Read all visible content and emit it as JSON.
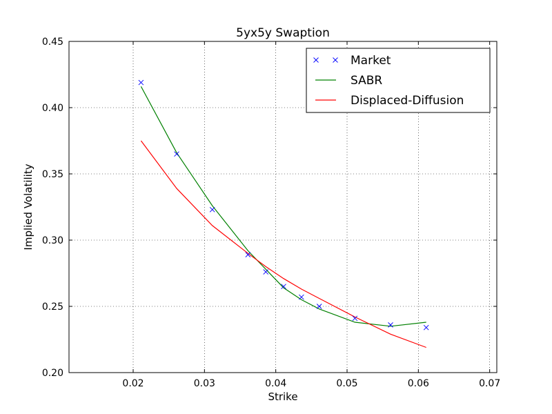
{
  "chart_data": {
    "type": "line",
    "title": "5yx5y Swaption",
    "xlabel": "Strike",
    "ylabel": "Implied Volatility",
    "xlim": [
      0.011,
      0.071
    ],
    "ylim": [
      0.2,
      0.45
    ],
    "grid": true,
    "legend_position": "top-right",
    "xticks": [
      0.02,
      0.03,
      0.04,
      0.05,
      0.06,
      0.07
    ],
    "xtick_labels": [
      "0.02",
      "0.03",
      "0.04",
      "0.05",
      "0.06",
      "0.07"
    ],
    "yticks": [
      0.2,
      0.25,
      0.3,
      0.35,
      0.4,
      0.45
    ],
    "ytick_labels": [
      "0.20",
      "0.25",
      "0.30",
      "0.35",
      "0.40",
      "0.45"
    ],
    "series": [
      {
        "name": "Market",
        "style": "markers",
        "marker": "x",
        "color": "#0000ff",
        "x": [
          0.0211,
          0.0261,
          0.0311,
          0.0361,
          0.0386,
          0.0411,
          0.0436,
          0.0461,
          0.0511,
          0.0561,
          0.0611
        ],
        "y": [
          0.419,
          0.365,
          0.323,
          0.289,
          0.276,
          0.265,
          0.257,
          0.25,
          0.241,
          0.236,
          0.234
        ]
      },
      {
        "name": "SABR",
        "style": "line",
        "color": "#008000",
        "x": [
          0.0211,
          0.0261,
          0.0311,
          0.0361,
          0.0386,
          0.0411,
          0.0436,
          0.0461,
          0.0511,
          0.0561,
          0.0611
        ],
        "y": [
          0.416,
          0.366,
          0.326,
          0.292,
          0.278,
          0.264,
          0.255,
          0.248,
          0.238,
          0.235,
          0.238
        ]
      },
      {
        "name": "Displaced-Diffusion",
        "style": "line",
        "color": "#ff0000",
        "x": [
          0.0211,
          0.0261,
          0.0311,
          0.0361,
          0.0386,
          0.0411,
          0.0436,
          0.0461,
          0.0511,
          0.0561,
          0.0611
        ],
        "y": [
          0.375,
          0.339,
          0.311,
          0.29,
          0.28,
          0.271,
          0.263,
          0.256,
          0.242,
          0.229,
          0.219
        ]
      }
    ]
  }
}
